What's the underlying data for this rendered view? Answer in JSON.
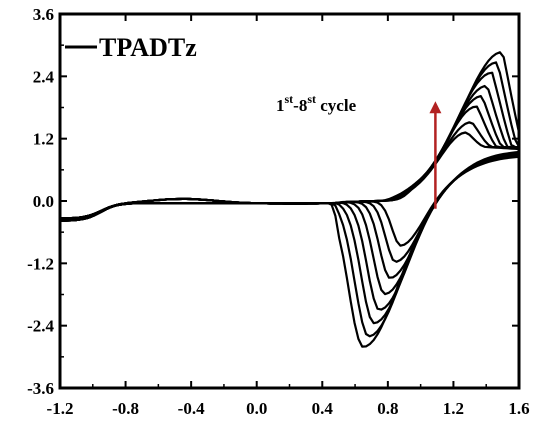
{
  "chart_data": {
    "type": "line",
    "title": "",
    "xlabel": "",
    "ylabel": "",
    "xlim": [
      -1.2,
      1.6
    ],
    "ylim": [
      -3.6,
      3.6
    ],
    "x_ticks": [
      "-1.2",
      "-0.8",
      "-0.4",
      "0.0",
      "0.4",
      "0.8",
      "1.2",
      "1.6"
    ],
    "y_ticks": [
      "3.6",
      "2.4",
      "1.2",
      "0.0",
      "-1.2",
      "-2.4",
      "-3.6"
    ],
    "grid": false,
    "legend": {
      "placement": "top-left",
      "entries": [
        {
          "label": "TPADTz",
          "color": "#000000"
        }
      ]
    },
    "annotation": {
      "base": "1",
      "sup1": "st",
      "mid": "-8",
      "sup2": "st",
      "tail": " cycle",
      "arrow_color": "#b22222",
      "arrow_x": 1.09,
      "arrow_from_y": -0.15,
      "arrow_to_y": 1.92
    },
    "series_color": "#000000",
    "cycles": [
      1,
      2,
      3,
      4,
      5,
      6,
      7,
      8
    ],
    "series": [
      {
        "cycle": 1,
        "max_current": 1.2,
        "min_current": -0.9
      },
      {
        "cycle": 2,
        "max_current": 1.4,
        "min_current": -1.2
      },
      {
        "cycle": 3,
        "max_current": 1.7,
        "min_current": -1.5
      },
      {
        "cycle": 4,
        "max_current": 1.9,
        "min_current": -1.8
      },
      {
        "cycle": 5,
        "max_current": 2.1,
        "min_current": -2.1
      },
      {
        "cycle": 6,
        "max_current": 2.35,
        "min_current": -2.35
      },
      {
        "cycle": 7,
        "max_current": 2.55,
        "min_current": -2.6
      },
      {
        "cycle": 8,
        "max_current": 2.75,
        "min_current": -2.8
      }
    ]
  }
}
